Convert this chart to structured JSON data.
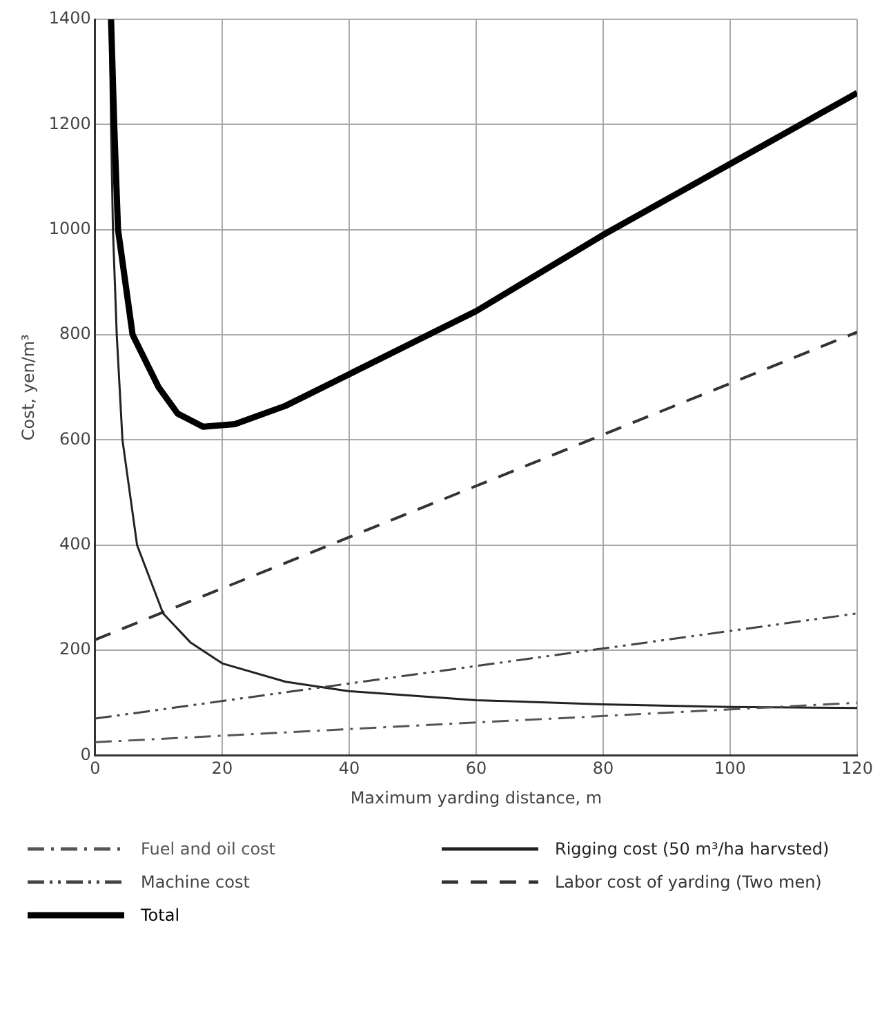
{
  "chart_data": {
    "type": "line",
    "xlabel": "Maximum yarding distance, m",
    "ylabel": "Cost, yen/m³",
    "xlim": [
      0,
      120
    ],
    "xticks": [
      0,
      20,
      40,
      60,
      80,
      100,
      120
    ],
    "ylim": [
      0,
      1400
    ],
    "yticks": [
      0,
      200,
      400,
      600,
      800,
      1000,
      1200,
      1400
    ],
    "grid": true,
    "legend": "bottom",
    "marker": "none",
    "series": [
      {
        "name": "Fuel and oil cost",
        "color": "#555555",
        "line_style": "dashdot",
        "x": [
          0,
          120
        ],
        "values": [
          25,
          100
        ]
      },
      {
        "name": "Machine cost",
        "color": "#444444",
        "line_style": "dashdotdot",
        "x": [
          0,
          120
        ],
        "values": [
          70,
          270
        ]
      },
      {
        "name": "Total",
        "color": "#000000",
        "line_style": "solid",
        "x": [
          2.5,
          3,
          3.6,
          5.9,
          10,
          13,
          17,
          22,
          30,
          40,
          60,
          80,
          100,
          120
        ],
        "values": [
          1400,
          1200,
          1000,
          800,
          700,
          650,
          625,
          630,
          665,
          725,
          845,
          990,
          1125,
          1260
        ]
      },
      {
        "name": "Rigging cost (50 m³/ha harvsted)",
        "color": "#222222",
        "line_style": "solid",
        "x": [
          2.3,
          2.5,
          2.8,
          3.4,
          4.3,
          6.6,
          10.7,
          15,
          20,
          30,
          40,
          60,
          80,
          100,
          120
        ],
        "values": [
          1400,
          1200,
          1000,
          800,
          600,
          400,
          270,
          215,
          175,
          140,
          122,
          105,
          97,
          92,
          90
        ]
      },
      {
        "name": "Labor cost of yarding (Two men)",
        "color": "#333333",
        "line_style": "dashed",
        "x": [
          0,
          120
        ],
        "values": [
          220,
          805
        ]
      }
    ]
  }
}
